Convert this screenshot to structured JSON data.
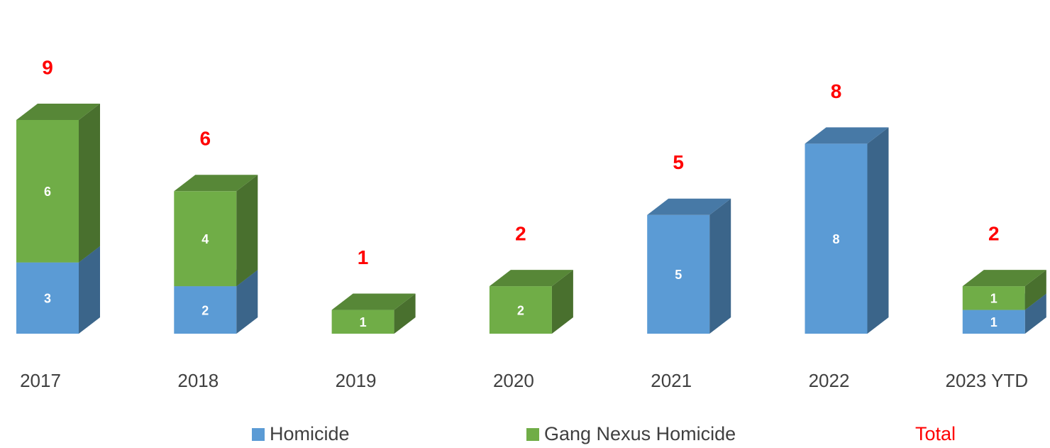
{
  "chart_data": {
    "type": "bar3d-stacked",
    "categories": [
      "2017",
      "2018",
      "2019",
      "2020",
      "2021",
      "2022",
      "2023 YTD"
    ],
    "series": [
      {
        "name": "Homicide",
        "color": "#5b9bd5",
        "values": [
          3,
          2,
          0,
          0,
          5,
          8,
          1
        ]
      },
      {
        "name": "Gang Nexus Homicide",
        "color": "#70ad47",
        "values": [
          6,
          4,
          1,
          2,
          0,
          0,
          1
        ]
      }
    ],
    "total": {
      "name": "Total",
      "color": "#ff0000",
      "values": [
        9,
        6,
        1,
        2,
        5,
        8,
        2
      ]
    }
  }
}
